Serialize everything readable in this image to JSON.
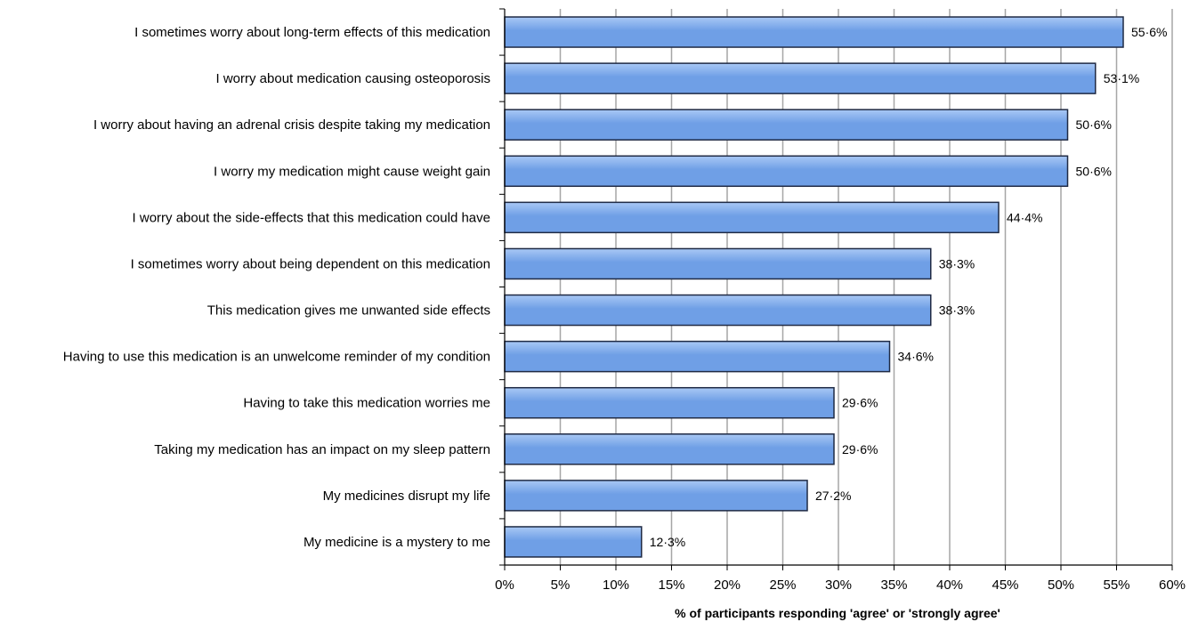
{
  "chart_data": {
    "type": "bar",
    "orientation": "horizontal",
    "categories": [
      "I sometimes worry about long-term effects of this medication",
      "I worry about medication causing osteoporosis",
      "I worry about having an adrenal crisis despite taking my medication",
      "I worry my medication might cause weight gain",
      "I worry about the side-effects that this medication could have",
      "I sometimes worry about being dependent on this medication",
      "This medication gives me unwanted side effects",
      "Having to use this medication is an unwelcome reminder of my condition",
      "Having to take this medication worries me",
      "Taking my medication has an impact on my sleep pattern",
      "My medicines disrupt my life",
      "My medicine is a mystery to me"
    ],
    "values": [
      55.6,
      53.1,
      50.6,
      50.6,
      44.4,
      38.3,
      38.3,
      34.6,
      29.6,
      29.6,
      27.2,
      12.3
    ],
    "data_labels": [
      "55·6%",
      "53·1%",
      "50·6%",
      "50·6%",
      "44·4%",
      "38·3%",
      "38·3%",
      "34·6%",
      "29·6%",
      "29·6%",
      "27·2%",
      "12·3%"
    ],
    "xlim": [
      0,
      60
    ],
    "xticks": [
      0,
      5,
      10,
      15,
      20,
      25,
      30,
      35,
      40,
      45,
      50,
      55,
      60
    ],
    "xtick_labels": [
      "0%",
      "5%",
      "10%",
      "15%",
      "20%",
      "25%",
      "30%",
      "35%",
      "40%",
      "45%",
      "50%",
      "55%",
      "60%"
    ],
    "xlabel": "% of participants responding 'agree' or 'strongly agree'",
    "title": "",
    "grid": "vertical",
    "bar_color": "#6f9fe6",
    "bar_color_light": "#a9c8f5",
    "bar_edge_color": "#1f2a44",
    "grid_color": "#a6a6a6"
  }
}
